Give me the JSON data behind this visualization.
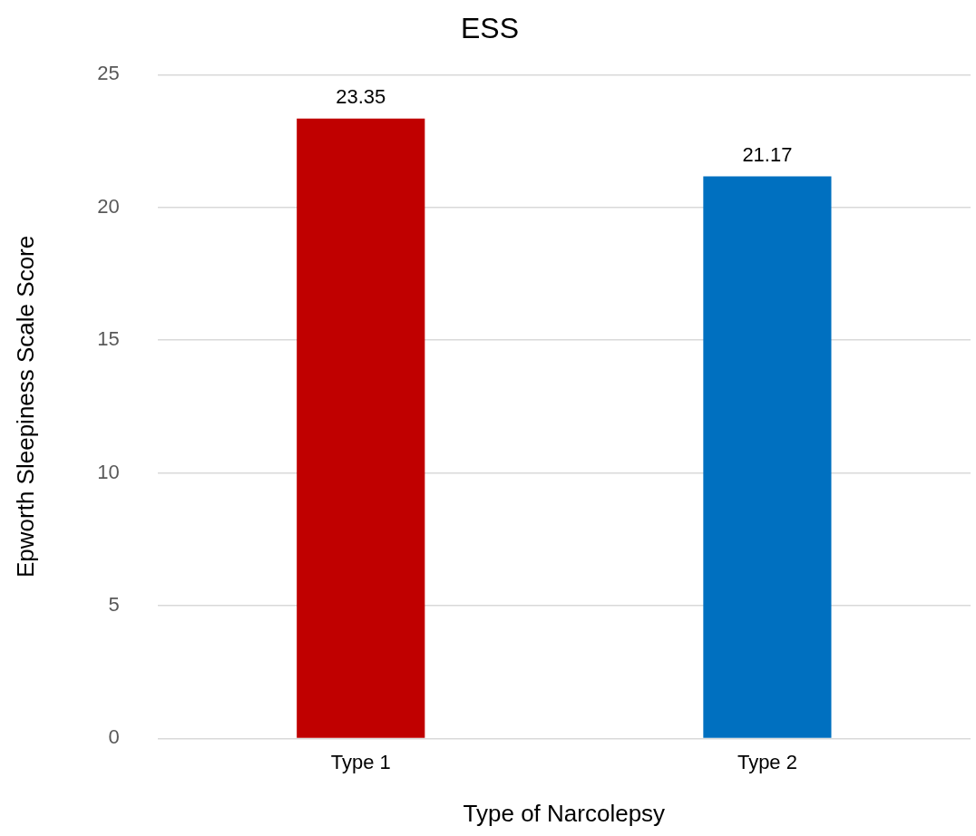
{
  "chart_data": {
    "type": "bar",
    "title": "ESS",
    "xlabel": "Type of Narcolepsy",
    "ylabel": "Epworth Sleepiness Scale Score",
    "categories": [
      "Type 1",
      "Type 2"
    ],
    "values": [
      23.35,
      21.17
    ],
    "colors": [
      "#c00000",
      "#0070c0"
    ],
    "ylim": [
      0,
      25
    ],
    "yticks": [
      0,
      5,
      10,
      15,
      20,
      25
    ],
    "grid": "y",
    "data_labels": true
  }
}
